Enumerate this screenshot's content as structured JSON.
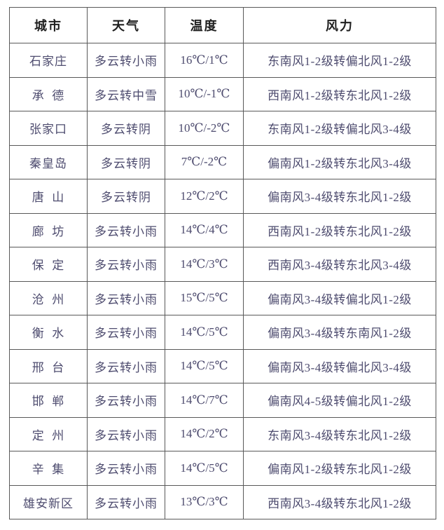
{
  "table": {
    "columns": [
      {
        "key": "city",
        "label": "城市"
      },
      {
        "key": "weather",
        "label": "天气"
      },
      {
        "key": "temperature",
        "label": "温度"
      },
      {
        "key": "wind",
        "label": "风力"
      }
    ],
    "rows": [
      {
        "city": "石家庄",
        "weather": "多云转小雨",
        "temperature": "16℃/1℃",
        "wind": "东南风1-2级转偏北风1-2级"
      },
      {
        "city": "承  德",
        "weather": "多云转中雪",
        "temperature": "10℃/-1℃",
        "wind": "西南风1-2级转东北风1-2级"
      },
      {
        "city": "张家口",
        "weather": "多云转阴",
        "temperature": "10℃/-2℃",
        "wind": "东南风1-2级转偏北风3-4级"
      },
      {
        "city": "秦皇岛",
        "weather": "多云转阴",
        "temperature": "7℃/-2℃",
        "wind": "偏南风1-2级转东北风3-4级"
      },
      {
        "city": "唐  山",
        "weather": "多云转阴",
        "temperature": "12℃/2℃",
        "wind": "偏南风3-4级转东北风1-2级"
      },
      {
        "city": "廊  坊",
        "weather": "多云转小雨",
        "temperature": "14℃/4℃",
        "wind": "西南风1-2级转东北风1-2级"
      },
      {
        "city": "保  定",
        "weather": "多云转小雨",
        "temperature": "14℃/3℃",
        "wind": "西南风3-4级转东北风3-4级"
      },
      {
        "city": "沧  州",
        "weather": "多云转小雨",
        "temperature": "15℃/5℃",
        "wind": "偏南风3-4级转偏北风1-2级"
      },
      {
        "city": "衡  水",
        "weather": "多云转小雨",
        "temperature": "14℃/5℃",
        "wind": "偏南风3-4级转东南风1-2级"
      },
      {
        "city": "邢  台",
        "weather": "多云转小雨",
        "temperature": "14℃/5℃",
        "wind": "偏南风3-4级转偏北风3-4级"
      },
      {
        "city": "邯  郸",
        "weather": "多云转小雨",
        "temperature": "14℃/7℃",
        "wind": "偏南风4-5级转偏北风1-2级"
      },
      {
        "city": "定  州",
        "weather": "多云转小雨",
        "temperature": "14℃/2℃",
        "wind": "东南风3-4级转东北风1-2级"
      },
      {
        "city": "辛  集",
        "weather": "多云转小雨",
        "temperature": "14℃/5℃",
        "wind": "偏南风1-2级转东北风1-2级"
      },
      {
        "city": "雄安新区",
        "weather": "多云转小雨",
        "temperature": "13℃/3℃",
        "wind": "西南风3-4级转东北风1-2级"
      }
    ]
  },
  "colors": {
    "background": "#ffffff",
    "header_text": "#1f1f1f",
    "body_text": "#4e4c6f",
    "temperature_text": "#e23434",
    "border": "#595959"
  }
}
